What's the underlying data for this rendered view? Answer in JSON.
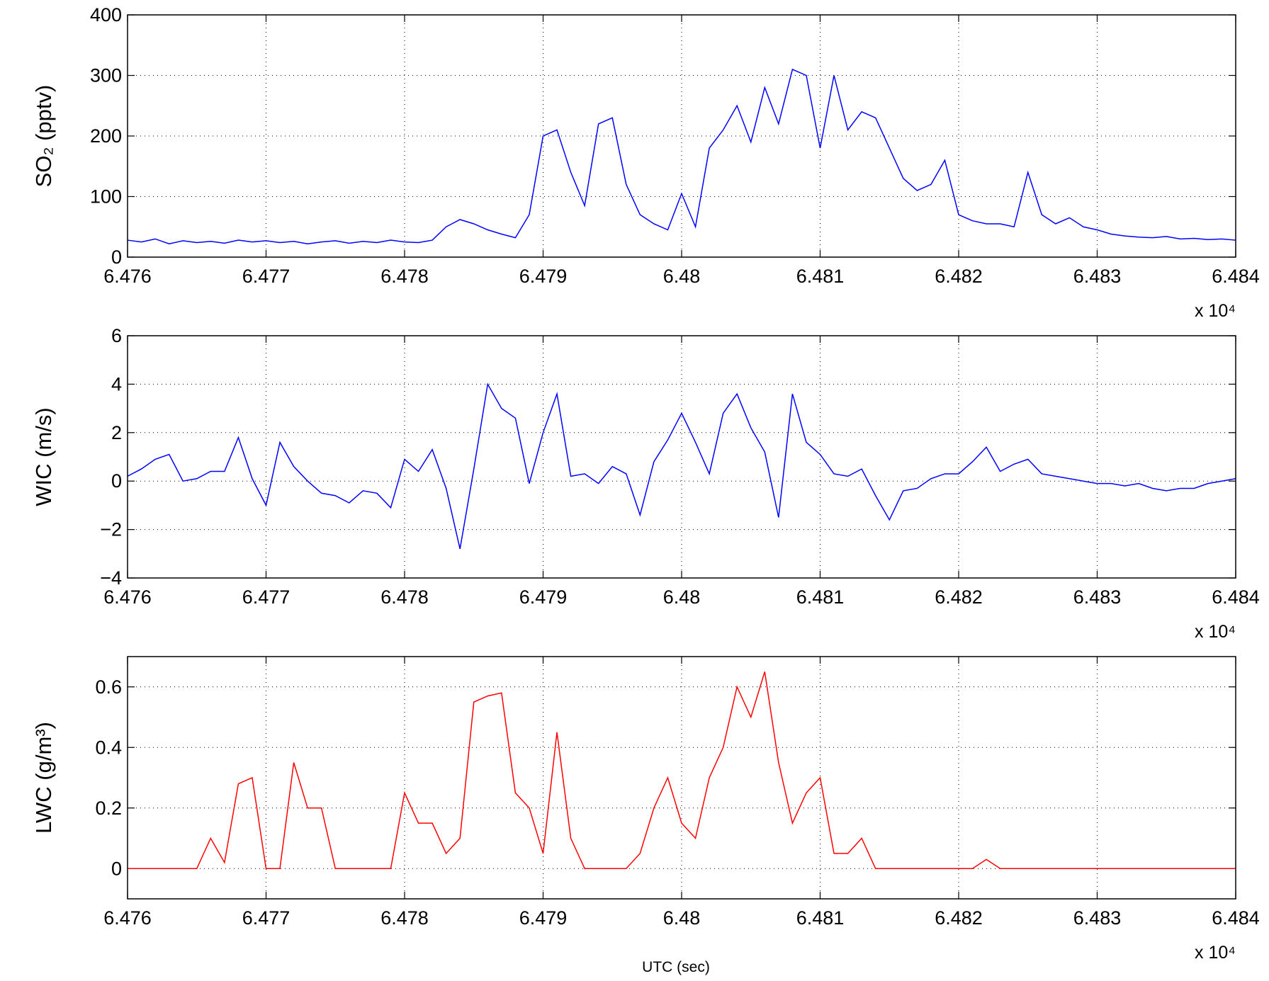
{
  "chart_data": [
    {
      "type": "line",
      "ylabel": "SO₂ (pptv)",
      "x_scale_label": "x 10⁴",
      "color": "#0000ff",
      "grid": true,
      "xlim": [
        64760,
        64840
      ],
      "xticks": [
        {
          "value": 64760,
          "label": "6.476"
        },
        {
          "value": 64770,
          "label": "6.477"
        },
        {
          "value": 64780,
          "label": "6.478"
        },
        {
          "value": 64790,
          "label": "6.479"
        },
        {
          "value": 64800,
          "label": "6.48"
        },
        {
          "value": 64810,
          "label": "6.481"
        },
        {
          "value": 64820,
          "label": "6.482"
        },
        {
          "value": 64830,
          "label": "6.483"
        },
        {
          "value": 64840,
          "label": "6.484"
        }
      ],
      "ylim": [
        0,
        400
      ],
      "yticks": [
        0,
        100,
        200,
        300,
        400
      ],
      "x": [
        64760,
        64761,
        64762,
        64763,
        64764,
        64765,
        64766,
        64767,
        64768,
        64769,
        64770,
        64771,
        64772,
        64773,
        64774,
        64775,
        64776,
        64777,
        64778,
        64779,
        64780,
        64781,
        64782,
        64783,
        64784,
        64785,
        64786,
        64787,
        64788,
        64789,
        64790,
        64791,
        64792,
        64793,
        64794,
        64795,
        64796,
        64797,
        64798,
        64799,
        64800,
        64801,
        64802,
        64803,
        64804,
        64805,
        64806,
        64807,
        64808,
        64809,
        64810,
        64811,
        64812,
        64813,
        64814,
        64815,
        64816,
        64817,
        64818,
        64819,
        64820,
        64821,
        64822,
        64823,
        64824,
        64825,
        64826,
        64827,
        64828,
        64829,
        64830,
        64831,
        64832,
        64833,
        64834,
        64835,
        64836,
        64837,
        64838,
        64839,
        64840
      ],
      "values": [
        28,
        25,
        30,
        22,
        27,
        24,
        26,
        23,
        28,
        25,
        27,
        24,
        26,
        22,
        25,
        27,
        23,
        26,
        24,
        28,
        25,
        24,
        28,
        50,
        62,
        55,
        45,
        38,
        32,
        70,
        200,
        210,
        140,
        85,
        220,
        230,
        120,
        70,
        55,
        45,
        105,
        50,
        180,
        210,
        250,
        190,
        280,
        220,
        310,
        300,
        180,
        300,
        210,
        240,
        230,
        180,
        130,
        110,
        120,
        160,
        70,
        60,
        55,
        55,
        50,
        140,
        70,
        55,
        65,
        50,
        45,
        38,
        35,
        33,
        32,
        34,
        30,
        31,
        29,
        30,
        28
      ]
    },
    {
      "type": "line",
      "ylabel": "WIC (m/s)",
      "x_scale_label": "x 10⁴",
      "color": "#0000ff",
      "grid": true,
      "xlim": [
        64760,
        64840
      ],
      "xticks": [
        {
          "value": 64760,
          "label": "6.476"
        },
        {
          "value": 64770,
          "label": "6.477"
        },
        {
          "value": 64780,
          "label": "6.478"
        },
        {
          "value": 64790,
          "label": "6.479"
        },
        {
          "value": 64800,
          "label": "6.48"
        },
        {
          "value": 64810,
          "label": "6.481"
        },
        {
          "value": 64820,
          "label": "6.482"
        },
        {
          "value": 64830,
          "label": "6.483"
        },
        {
          "value": 64840,
          "label": "6.484"
        }
      ],
      "ylim": [
        -4,
        6
      ],
      "yticks": [
        {
          "value": -4,
          "label": "−4"
        },
        {
          "value": -2,
          "label": "−2"
        },
        0,
        2,
        4,
        6
      ],
      "x": [
        64760,
        64761,
        64762,
        64763,
        64764,
        64765,
        64766,
        64767,
        64768,
        64769,
        64770,
        64771,
        64772,
        64773,
        64774,
        64775,
        64776,
        64777,
        64778,
        64779,
        64780,
        64781,
        64782,
        64783,
        64784,
        64785,
        64786,
        64787,
        64788,
        64789,
        64790,
        64791,
        64792,
        64793,
        64794,
        64795,
        64796,
        64797,
        64798,
        64799,
        64800,
        64801,
        64802,
        64803,
        64804,
        64805,
        64806,
        64807,
        64808,
        64809,
        64810,
        64811,
        64812,
        64813,
        64814,
        64815,
        64816,
        64817,
        64818,
        64819,
        64820,
        64821,
        64822,
        64823,
        64824,
        64825,
        64826,
        64827,
        64828,
        64829,
        64830,
        64831,
        64832,
        64833,
        64834,
        64835,
        64836,
        64837,
        64838,
        64839,
        64840
      ],
      "values": [
        0.2,
        0.5,
        0.9,
        1.1,
        0.0,
        0.1,
        0.4,
        0.4,
        1.8,
        0.1,
        -1.0,
        1.6,
        0.6,
        0.0,
        -0.5,
        -0.6,
        -0.9,
        -0.4,
        -0.5,
        -1.1,
        0.9,
        0.4,
        1.3,
        -0.3,
        -2.8,
        0.5,
        4.0,
        3.0,
        2.6,
        -0.1,
        2.0,
        3.6,
        0.2,
        0.3,
        -0.1,
        0.6,
        0.3,
        -1.4,
        0.8,
        1.7,
        2.8,
        1.6,
        0.3,
        2.8,
        3.6,
        2.2,
        1.2,
        -1.5,
        3.6,
        1.6,
        1.1,
        0.3,
        0.2,
        0.5,
        -0.6,
        -1.6,
        -0.4,
        -0.3,
        0.1,
        0.3,
        0.3,
        0.8,
        1.4,
        0.4,
        0.7,
        0.9,
        0.3,
        0.2,
        0.1,
        0.0,
        -0.1,
        -0.1,
        -0.2,
        -0.1,
        -0.3,
        -0.4,
        -0.3,
        -0.3,
        -0.1,
        0.0,
        0.1
      ]
    },
    {
      "type": "line",
      "ylabel": "LWC (g/m³)",
      "x_scale_label": "x 10⁴",
      "xlabel": "UTC (sec)",
      "color": "#ff0000",
      "grid": true,
      "xlim": [
        64760,
        64840
      ],
      "xticks": [
        {
          "value": 64760,
          "label": "6.476"
        },
        {
          "value": 64770,
          "label": "6.477"
        },
        {
          "value": 64780,
          "label": "6.478"
        },
        {
          "value": 64790,
          "label": "6.479"
        },
        {
          "value": 64800,
          "label": "6.48"
        },
        {
          "value": 64810,
          "label": "6.481"
        },
        {
          "value": 64820,
          "label": "6.482"
        },
        {
          "value": 64830,
          "label": "6.483"
        },
        {
          "value": 64840,
          "label": "6.484"
        }
      ],
      "ylim": [
        -0.1,
        0.7
      ],
      "yticks": [
        0,
        0.2,
        0.4,
        0.6
      ],
      "x": [
        64760,
        64761,
        64762,
        64763,
        64764,
        64765,
        64766,
        64767,
        64768,
        64769,
        64770,
        64771,
        64772,
        64773,
        64774,
        64775,
        64776,
        64777,
        64778,
        64779,
        64780,
        64781,
        64782,
        64783,
        64784,
        64785,
        64786,
        64787,
        64788,
        64789,
        64790,
        64791,
        64792,
        64793,
        64794,
        64795,
        64796,
        64797,
        64798,
        64799,
        64800,
        64801,
        64802,
        64803,
        64804,
        64805,
        64806,
        64807,
        64808,
        64809,
        64810,
        64811,
        64812,
        64813,
        64814,
        64815,
        64816,
        64817,
        64818,
        64819,
        64820,
        64821,
        64822,
        64823,
        64824,
        64825,
        64826,
        64827,
        64828,
        64829,
        64830,
        64831,
        64832,
        64833,
        64834,
        64835,
        64836,
        64837,
        64838,
        64839,
        64840
      ],
      "values": [
        0,
        0,
        0,
        0,
        0,
        0,
        0.1,
        0.02,
        0.28,
        0.3,
        0,
        0,
        0.35,
        0.2,
        0.2,
        0,
        0,
        0,
        0,
        0,
        0.25,
        0.15,
        0.15,
        0.05,
        0.1,
        0.55,
        0.57,
        0.58,
        0.25,
        0.2,
        0.05,
        0.45,
        0.1,
        0,
        0,
        0,
        0,
        0.05,
        0.2,
        0.3,
        0.15,
        0.1,
        0.3,
        0.4,
        0.6,
        0.5,
        0.65,
        0.35,
        0.15,
        0.25,
        0.3,
        0.05,
        0.05,
        0.1,
        0,
        0,
        0,
        0,
        0,
        0,
        0,
        0,
        0.03,
        0,
        0,
        0,
        0,
        0,
        0,
        0,
        0,
        0,
        0,
        0,
        0,
        0,
        0,
        0,
        0,
        0,
        0
      ]
    }
  ]
}
